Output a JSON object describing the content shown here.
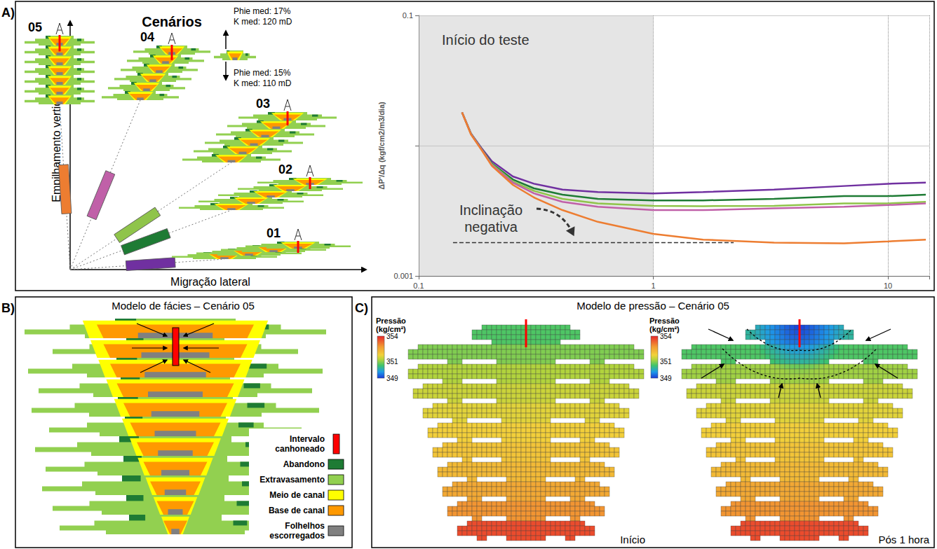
{
  "figure": {
    "panel_labels": [
      "A)",
      "B)",
      "C)"
    ],
    "scenarios": {
      "title": "Cenários",
      "x_axis_label": "Migração lateral",
      "y_axis_label": "Empilhamento vertical",
      "inset": {
        "upper": [
          "Phie med: 17%",
          "K med: 120 mD"
        ],
        "lower": [
          "Phie med: 15%",
          "K med: 110 mD"
        ]
      }
    },
    "facies_model": {
      "title": "Modelo de fácies – Cenário 05",
      "legend": [
        {
          "label": "Intervalo canhoneado",
          "color": "#ff0000"
        },
        {
          "label": "Abandono",
          "color": "#1e7b34"
        },
        {
          "label": "Extravasamento",
          "color": "#92d050"
        },
        {
          "label": "Meio de canal",
          "color": "#ffff00"
        },
        {
          "label": "Base de canal",
          "color": "#ff9900"
        },
        {
          "label": "Folhelhos escorregados",
          "color": "#808080"
        }
      ]
    },
    "pressure_model": {
      "title": "Modelo de pressão – Cenário 05",
      "colorbar": {
        "label": "Pressão (kg/cm²)",
        "range": [
          349,
          354
        ],
        "ticks": [
          354,
          351,
          349
        ]
      },
      "states": [
        {
          "label": "Início",
          "layer_pressures": [
            350.6,
            350.9,
            351.2,
            351.4,
            351.6,
            351.8,
            352.0,
            352.2,
            352.5,
            352.8,
            353.6
          ]
        },
        {
          "label": "Pós 1 hora",
          "layer_pressures": [
            350.2,
            350.6,
            351.1,
            351.4,
            351.6,
            351.8,
            352.0,
            352.2,
            352.5,
            352.8,
            353.6
          ],
          "well_pressure": 349
        }
      ]
    }
  },
  "chart_data": {
    "type": "line",
    "log": true,
    "grid": true,
    "y_label": "ΔP'/Δq (kgf/cm2/m3/dia)",
    "xlim": [
      0.1,
      15
    ],
    "xticks": [
      0.1,
      1,
      10
    ],
    "ylim": [
      0.001,
      0.1
    ],
    "yticks": [
      0.001,
      0.1
    ],
    "shaded_region": {
      "x": [
        0.1,
        1
      ],
      "label": "Início do teste"
    },
    "annotation": "Inclinação negativa",
    "reference_line": {
      "x": [
        0.14,
        2.2
      ],
      "y": 0.0018
    },
    "x": [
      0.153,
      0.167,
      0.185,
      0.205,
      0.252,
      0.31,
      0.41,
      0.58,
      1.0,
      1.63,
      3.27,
      6.5,
      10,
      14.5
    ],
    "series": [
      {
        "name": "01",
        "color": "#7030a0",
        "values": [
          0.018,
          0.0124,
          0.0096,
          0.0076,
          0.0058,
          0.0051,
          0.0046,
          0.0044,
          0.0043,
          0.0044,
          0.0046,
          0.0049,
          0.0051,
          0.0052
        ]
      },
      {
        "name": "02",
        "color": "#1e7b34",
        "values": [
          0.018,
          0.0124,
          0.0095,
          0.0073,
          0.0055,
          0.0047,
          0.0042,
          0.0039,
          0.0038,
          0.0038,
          0.0039,
          0.0041,
          0.0041,
          0.0042
        ]
      },
      {
        "name": "03",
        "color": "#8fc44a",
        "values": [
          0.018,
          0.0123,
          0.0094,
          0.0072,
          0.0053,
          0.0045,
          0.0039,
          0.0036,
          0.00345,
          0.00343,
          0.00345,
          0.0036,
          0.0036,
          0.0037
        ]
      },
      {
        "name": "04",
        "color": "#c060a8",
        "values": [
          0.018,
          0.0123,
          0.0094,
          0.0071,
          0.0052,
          0.0043,
          0.0037,
          0.0034,
          0.0032,
          0.0032,
          0.0033,
          0.0034,
          0.0035,
          0.0036
        ]
      },
      {
        "name": "05",
        "color": "#ed7d31",
        "values": [
          0.018,
          0.0122,
          0.0093,
          0.007,
          0.005,
          0.004,
          0.0032,
          0.0026,
          0.0021,
          0.0019,
          0.0018,
          0.00178,
          0.00184,
          0.0019
        ]
      }
    ]
  }
}
